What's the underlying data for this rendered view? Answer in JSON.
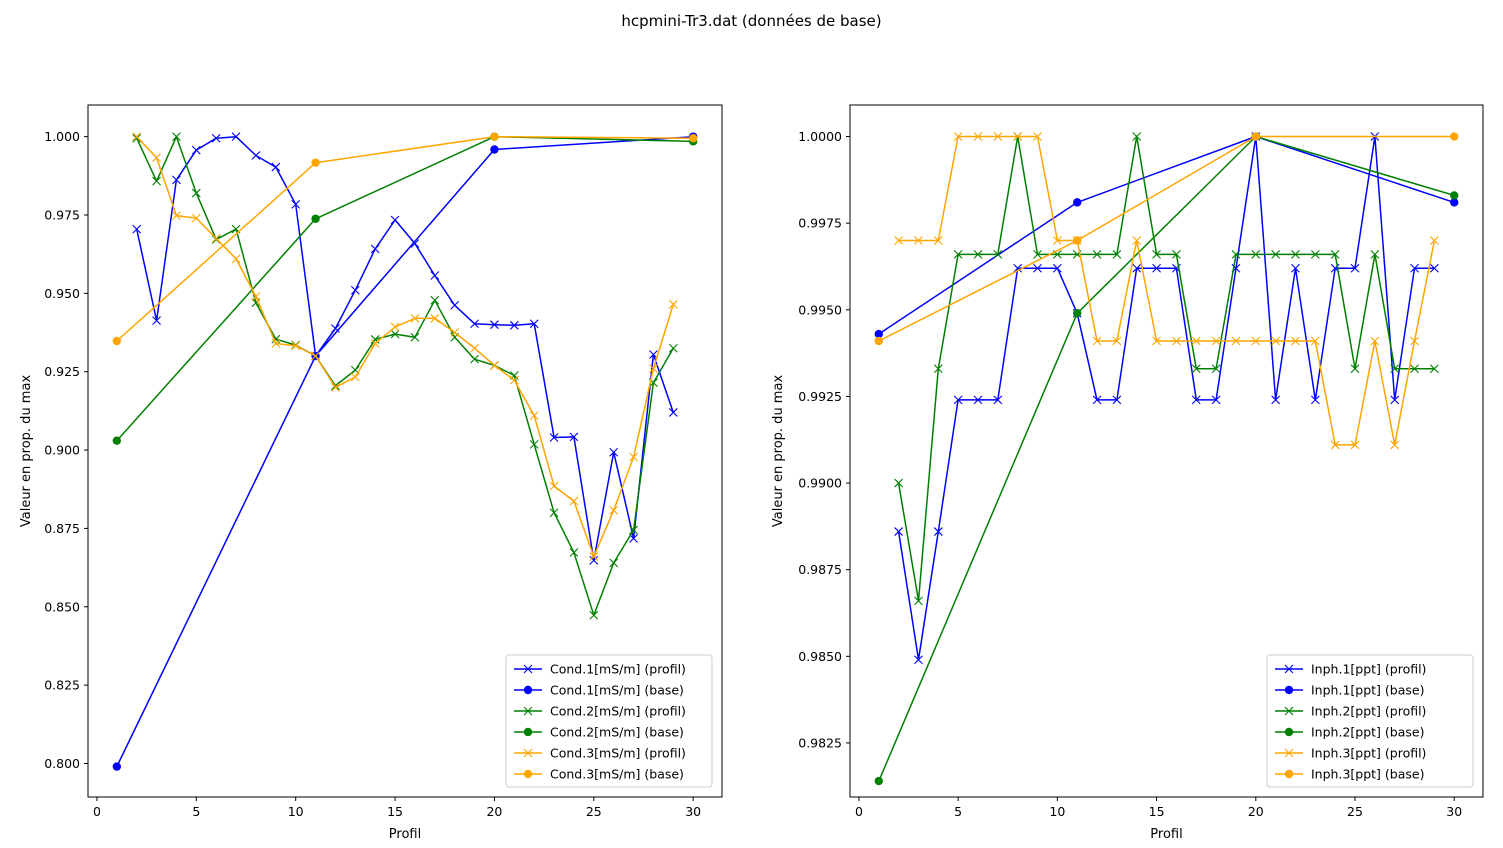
{
  "figure_title": "hcpmini-Tr3.dat (données de base)",
  "chart_data": [
    {
      "type": "line",
      "title": "",
      "xlabel": "Profil",
      "ylabel": "Valeur en prop. du max",
      "xlim": [
        -0.45,
        31.45
      ],
      "ylim": [
        0.7893,
        1.0101
      ],
      "xticks": [
        0,
        5,
        10,
        15,
        20,
        25,
        30
      ],
      "xtick_labels": [
        "0",
        "5",
        "10",
        "15",
        "20",
        "25",
        "30"
      ],
      "yticks": [
        0.8,
        0.825,
        0.85,
        0.875,
        0.9,
        0.925,
        0.95,
        0.975,
        1.0
      ],
      "ytick_labels": [
        "0.800",
        "0.825",
        "0.850",
        "0.875",
        "0.900",
        "0.925",
        "0.950",
        "0.975",
        "1.000"
      ],
      "grid": false,
      "legend_position": "lower-right",
      "series": [
        {
          "name": "Cond.1[mS/m] (profil)",
          "color": "#0000ff",
          "marker": "x",
          "x": [
            2,
            3,
            4,
            5,
            6,
            7,
            8,
            9,
            10,
            11,
            12,
            13,
            14,
            15,
            16,
            17,
            18,
            19,
            20,
            21,
            22,
            23,
            24,
            25,
            26,
            27,
            28,
            29
          ],
          "y": [
            0.9705,
            0.9413,
            0.9862,
            0.9957,
            0.9995,
            1.0,
            0.994,
            0.9903,
            0.9784,
            0.93,
            0.9388,
            0.951,
            0.9642,
            0.9734,
            0.9659,
            0.9557,
            0.9462,
            0.9403,
            0.94,
            0.9398,
            0.9403,
            0.904,
            0.9042,
            0.8648,
            0.8993,
            0.8718,
            0.9305,
            0.912
          ]
        },
        {
          "name": "Cond.1[mS/m] (base)",
          "color": "#0000ff",
          "marker": "o",
          "x": [
            1,
            11,
            20,
            30
          ],
          "y": [
            0.799,
            0.93,
            0.9959,
            1.0
          ]
        },
        {
          "name": "Cond.2[mS/m] (profil)",
          "color": "#008000",
          "marker": "x",
          "x": [
            2,
            3,
            4,
            5,
            6,
            7,
            8,
            9,
            10,
            11,
            12,
            13,
            14,
            15,
            16,
            17,
            18,
            19,
            20,
            21,
            22,
            23,
            24,
            25,
            26,
            27,
            28,
            29
          ],
          "y": [
            0.9995,
            0.9858,
            1.0,
            0.982,
            0.9672,
            0.9705,
            0.947,
            0.9354,
            0.9335,
            0.93,
            0.9205,
            0.9255,
            0.9353,
            0.937,
            0.936,
            0.9478,
            0.936,
            0.929,
            0.927,
            0.9238,
            0.9018,
            0.88,
            0.8673,
            0.8473,
            0.864,
            0.8745,
            0.9215,
            0.9325
          ]
        },
        {
          "name": "Cond.2[mS/m] (base)",
          "color": "#008000",
          "marker": "o",
          "x": [
            1,
            11,
            20,
            30
          ],
          "y": [
            0.903,
            0.9738,
            1.0,
            0.9985
          ]
        },
        {
          "name": "Cond.3[mS/m] (profil)",
          "color": "#ffa500",
          "marker": "x",
          "x": [
            2,
            3,
            4,
            5,
            6,
            7,
            8,
            9,
            10,
            11,
            12,
            13,
            14,
            15,
            16,
            17,
            18,
            19,
            20,
            21,
            22,
            23,
            24,
            25,
            26,
            27,
            28,
            29
          ],
          "y": [
            1.0,
            0.9933,
            0.9748,
            0.974,
            0.9675,
            0.961,
            0.949,
            0.934,
            0.9333,
            0.93,
            0.92,
            0.9233,
            0.934,
            0.9393,
            0.942,
            0.942,
            0.9375,
            0.9325,
            0.927,
            0.9223,
            0.911,
            0.8885,
            0.8837,
            0.866,
            0.8808,
            0.8978,
            0.926,
            0.9465
          ]
        },
        {
          "name": "Cond.3[mS/m] (base)",
          "color": "#ffa500",
          "marker": "o",
          "x": [
            1,
            11,
            20,
            30
          ],
          "y": [
            0.9348,
            0.9917,
            1.0,
            0.9995
          ]
        }
      ]
    },
    {
      "type": "line",
      "title": "",
      "xlabel": "Profil",
      "ylabel": "Valeur en prop. du max",
      "xlim": [
        -0.45,
        31.45
      ],
      "ylim": [
        0.98094,
        1.00091
      ],
      "xticks": [
        0,
        5,
        10,
        15,
        20,
        25,
        30
      ],
      "xtick_labels": [
        "0",
        "5",
        "10",
        "15",
        "20",
        "25",
        "30"
      ],
      "yticks": [
        0.9825,
        0.985,
        0.9875,
        0.99,
        0.9925,
        0.995,
        0.9975,
        1.0
      ],
      "ytick_labels": [
        "0.9825",
        "0.9850",
        "0.9875",
        "0.9900",
        "0.9925",
        "0.9950",
        "0.9975",
        "1.0000"
      ],
      "grid": false,
      "legend_position": "lower-right",
      "series": [
        {
          "name": "Inph.1[ppt] (profil)",
          "color": "#0000ff",
          "marker": "x",
          "x": [
            2,
            3,
            4,
            5,
            6,
            7,
            8,
            9,
            10,
            11,
            12,
            13,
            14,
            15,
            16,
            17,
            18,
            19,
            20,
            21,
            22,
            23,
            24,
            25,
            26,
            27,
            28,
            29
          ],
          "y": [
            0.9886,
            0.9849,
            0.9886,
            0.9924,
            0.9924,
            0.9924,
            0.9962,
            0.9962,
            0.9962,
            0.9949,
            0.9924,
            0.9924,
            0.9962,
            0.9962,
            0.9962,
            0.9924,
            0.9924,
            0.9962,
            1.0,
            0.9924,
            0.9962,
            0.9924,
            0.9962,
            0.9962,
            1.0,
            0.9924,
            0.9962,
            0.9962
          ]
        },
        {
          "name": "Inph.1[ppt] (base)",
          "color": "#0000ff",
          "marker": "o",
          "x": [
            1,
            11,
            20,
            30
          ],
          "y": [
            0.9943,
            0.9981,
            1.0,
            0.9981
          ]
        },
        {
          "name": "Inph.2[ppt] (profil)",
          "color": "#008000",
          "marker": "x",
          "x": [
            2,
            3,
            4,
            5,
            6,
            7,
            8,
            9,
            10,
            11,
            12,
            13,
            14,
            15,
            16,
            17,
            18,
            19,
            20,
            21,
            22,
            23,
            24,
            25,
            26,
            27,
            28,
            29
          ],
          "y": [
            0.99,
            0.9866,
            0.9933,
            0.9966,
            0.9966,
            0.9966,
            1.0,
            0.9966,
            0.9966,
            0.9966,
            0.9966,
            0.9966,
            1.0,
            0.9966,
            0.9966,
            0.9933,
            0.9933,
            0.9966,
            0.9966,
            0.9966,
            0.9966,
            0.9966,
            0.9966,
            0.9933,
            0.9966,
            0.9933,
            0.9933,
            0.9933
          ]
        },
        {
          "name": "Inph.2[ppt] (base)",
          "color": "#008000",
          "marker": "o",
          "x": [
            1,
            11,
            20,
            30
          ],
          "y": [
            0.9814,
            0.9949,
            1.0,
            0.9983
          ]
        },
        {
          "name": "Inph.3[ppt] (profil)",
          "color": "#ffa500",
          "marker": "x",
          "x": [
            2,
            3,
            4,
            5,
            6,
            7,
            8,
            9,
            10,
            11,
            12,
            13,
            14,
            15,
            16,
            17,
            18,
            19,
            20,
            21,
            22,
            23,
            24,
            25,
            26,
            27,
            28,
            29
          ],
          "y": [
            0.997,
            0.997,
            0.997,
            1.0,
            1.0,
            1.0,
            1.0,
            1.0,
            0.997,
            0.997,
            0.9941,
            0.9941,
            0.997,
            0.9941,
            0.9941,
            0.9941,
            0.9941,
            0.9941,
            0.9941,
            0.9941,
            0.9941,
            0.9941,
            0.9911,
            0.9911,
            0.9941,
            0.9911,
            0.9941,
            0.997
          ]
        },
        {
          "name": "Inph.3[ppt] (base)",
          "color": "#ffa500",
          "marker": "o",
          "x": [
            1,
            11,
            20,
            30
          ],
          "y": [
            0.9941,
            0.997,
            1.0,
            1.0
          ]
        }
      ]
    }
  ]
}
